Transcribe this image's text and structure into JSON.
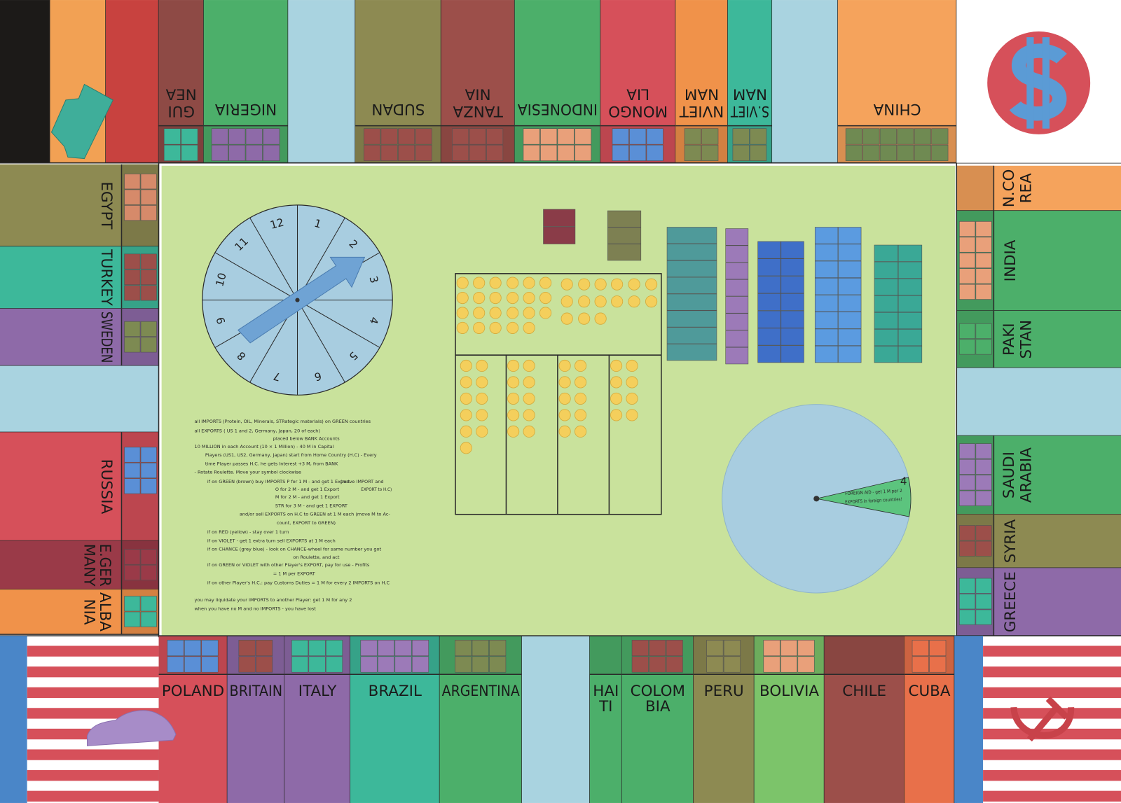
{
  "board": {
    "top_spaces": [
      [
        "GUI",
        "NEA"
      ],
      [
        "NIGERIA"
      ],
      [
        "SUDAN"
      ],
      [
        "TANZA",
        "NIA"
      ],
      [
        "INDONESIA"
      ],
      [
        "MONGO",
        "LIA"
      ],
      [
        "NVIET",
        "NAM"
      ],
      [
        "S.VIET",
        "NAM"
      ],
      [
        "CHINA"
      ]
    ],
    "left_spaces": [
      [
        "EGYPT"
      ],
      [
        "TURKEY"
      ],
      [
        "SWEDEN"
      ],
      [
        "RUSSIA"
      ],
      [
        "E.GER",
        "MANY"
      ],
      [
        "ALBA",
        "NIA"
      ]
    ],
    "right_spaces": [
      [
        "N.CO",
        "REA"
      ],
      [
        "INDIA"
      ],
      [
        "PAKI",
        "STAN"
      ],
      [
        "SAUDI",
        "ARABIA"
      ],
      [
        "SYRIA"
      ],
      [
        "GREECE"
      ]
    ],
    "bottom_spaces": [
      [
        "POLAND"
      ],
      [
        "BRITAIN"
      ],
      [
        "ITALY"
      ],
      [
        "BRAZIL"
      ],
      [
        "ARGENTINA"
      ],
      [
        "HAI",
        "TI"
      ],
      [
        "COLOM",
        "BIA"
      ],
      [
        "PERU"
      ],
      [
        "BOLIVIA"
      ],
      [
        "CHILE"
      ],
      [
        "CUBA"
      ]
    ]
  },
  "roulette": {
    "numbers": [
      1,
      2,
      3,
      4,
      5,
      6,
      7,
      8,
      9,
      10,
      11,
      12
    ]
  },
  "rules": [
    "all IMPORTS (Protein, OIL, Minerals, STRategic materials) on GREEN countries",
    "all EXPORTS ( US 1 and 2, Germany, Japan, 20 of each)",
    "placed below BANK Accounts",
    "10 MILLION in each Account (10 × 1 Million) - 40 M in Capital",
    "Players (US1, US2, Germany, Japan) start from Home Country (H.C) - Every",
    "time Player passes H.C. he gets Interest +3 M, from BANK",
    "- Rotate Roulette. Move your symbol clockwise",
    "if on GREEN (brown) buy IMPORTS P for 1 M - and get 1 Export",
    "(move IMPORT and",
    "EXPORT to H.C)",
    "O for 2 M - and get 1 Export",
    "M for 2 M - and get 1 Export",
    "STR for 3 M - and get 1 EXPORT",
    "and/or sell EXPORTS on H.C to GREEN at 1 M each (move M to Ac-",
    "count, EXPORT to GREEN)",
    "if on RED (yellow) - stay over 1 turn",
    "if on VIOLET - get 1 extra turn sell EXPORTS at 1 M each",
    "if on CHANCE (grey blue) - look on CHANCE-wheel for same number you got",
    "on Roulette, and act",
    "if on GREEN or VIOLET with other Player's EXPORT, pay for use - Profits",
    "= 1 M per EXPORT",
    "if on other Player's H.C.: pay Customs Duties = 1 M for every 2 IMPORTS on H.C",
    "you may liquidate your IMPORTS to another Player: get 1 M for any 2",
    "when you have no M and no IMPORTS - you have lost"
  ],
  "chance_wheel": {
    "number": "4",
    "text": [
      "FOREIGN AID - get 1 M per 2",
      "EXPORTS in foreign countries!"
    ]
  }
}
